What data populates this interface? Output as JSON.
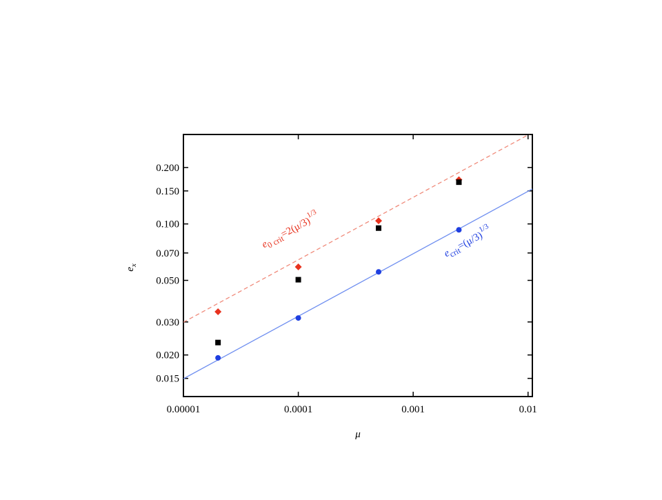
{
  "chart_data": {
    "type": "scatter",
    "xlabel": "μ",
    "ylabel": {
      "text": "e",
      "sub": "x"
    },
    "log_x": true,
    "log_y": true,
    "xlim": [
      1e-05,
      0.0109
    ],
    "ylim": [
      0.012,
      0.3
    ],
    "xticks": [
      1e-05,
      0.0001,
      0.001,
      0.01
    ],
    "yticks": [
      0.015,
      {
        "value": 0.02,
        "label": "0.020"
      },
      {
        "value": 0.03,
        "label": "0.030"
      },
      {
        "value": 0.05,
        "label": "0.050"
      },
      {
        "value": 0.07,
        "label": "0.070"
      },
      {
        "value": 0.1,
        "label": "0.100"
      },
      {
        "value": 0.15,
        "label": "0.150"
      },
      {
        "value": 0.2,
        "label": "0.200"
      }
    ],
    "x": [
      2e-05,
      0.0001,
      0.0005,
      0.0025
    ],
    "series": [
      {
        "color": "#e8321e",
        "marker": "diamond",
        "values": [
          0.034,
          0.059,
          0.104,
          0.172
        ]
      },
      {
        "color": "#000000",
        "marker": "square",
        "values": [
          0.0233,
          0.0504,
          0.095,
          0.167
        ]
      },
      {
        "color": "#1f3fe0",
        "marker": "circle",
        "values": [
          0.0193,
          0.0315,
          0.0555,
          0.093
        ]
      }
    ],
    "lines": [
      {
        "color": "#f08a7a",
        "dash": true,
        "x": [
          1e-05,
          0.0109
        ],
        "values": [
          0.0299,
          0.307
        ]
      },
      {
        "color": "#6f8ff0",
        "dash": false,
        "x": [
          1e-05,
          0.0109
        ],
        "values": [
          0.01494,
          0.1537
        ]
      }
    ],
    "annotations": [
      {
        "color": "#e8321e",
        "main": "e",
        "sub": "0 crit",
        "rest": "=2(μ/3)",
        "sup": "1/3"
      },
      {
        "color": "#1f3fe0",
        "main": "e",
        "sub": "crit",
        "rest": "=(μ/3)",
        "sup": "1/3"
      }
    ]
  }
}
